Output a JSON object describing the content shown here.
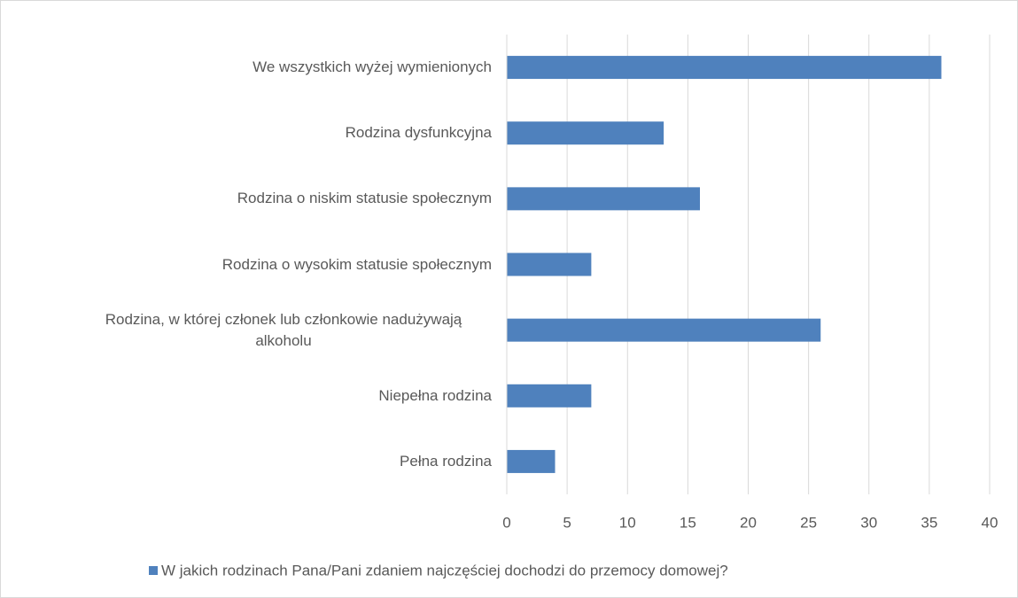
{
  "chart_data": {
    "type": "bar",
    "orientation": "horizontal",
    "categories": [
      "We wszystkich wyżej wymienionych",
      "Rodzina dysfunkcyjna",
      "Rodzina o niskim statusie społecznym",
      "Rodzina o wysokim statusie społecznym",
      "Rodzina, w której członek lub członkowie nadużywają alkoholu",
      "Niepełna rodzina",
      "Pełna rodzina"
    ],
    "series": [
      {
        "name": "W jakich rodzinach Pana/Pani zdaniem najczęściej dochodzi do przemocy domowej?",
        "color": "#4f81bd",
        "values": [
          36,
          13,
          16,
          7,
          26,
          7,
          4
        ]
      }
    ],
    "xlim": [
      0,
      40
    ],
    "xticks": [
      0,
      5,
      10,
      15,
      20,
      25,
      30,
      35,
      40
    ],
    "grid": true,
    "legend": "bottom"
  }
}
